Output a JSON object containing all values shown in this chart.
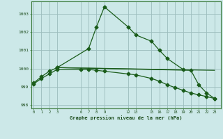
{
  "xlabel": "Graphe pression niveau de la mer (hPa)",
  "background_color": "#cce8e8",
  "grid_color": "#9bbcbc",
  "line_color": "#1a5c1a",
  "ylim": [
    997.8,
    1003.7
  ],
  "yticks": [
    998,
    999,
    1000,
    1001,
    1002,
    1003
  ],
  "xticks": [
    0,
    1,
    2,
    3,
    6,
    7,
    8,
    9,
    12,
    13,
    15,
    16,
    17,
    18,
    19,
    20,
    21,
    22,
    23
  ],
  "xlim": [
    -0.3,
    23.8
  ],
  "series1_x": [
    0,
    1,
    2,
    3,
    7,
    8,
    9,
    12,
    13,
    15,
    16,
    17,
    19
  ],
  "series1_y": [
    999.2,
    999.55,
    999.85,
    1000.05,
    1001.1,
    1002.3,
    1003.4,
    1002.3,
    1001.85,
    1001.5,
    1001.0,
    1000.55,
    999.95
  ],
  "series2_x": [
    0,
    1,
    2,
    3,
    6,
    7,
    8,
    9,
    12,
    13,
    15,
    16,
    17,
    18,
    19,
    20,
    21,
    22,
    23
  ],
  "series2_y": [
    999.15,
    999.45,
    999.7,
    999.95,
    999.95,
    999.95,
    999.9,
    999.85,
    999.7,
    999.65,
    999.45,
    999.3,
    999.1,
    998.95,
    998.8,
    998.65,
    998.55,
    998.45,
    998.35
  ],
  "series3_x": [
    3,
    20,
    21,
    22,
    23
  ],
  "series3_y": [
    1000.05,
    999.9,
    999.1,
    998.65,
    998.35
  ],
  "series4_x": [
    3,
    23
  ],
  "series4_y": [
    1000.05,
    999.9
  ],
  "marker_size": 2.5,
  "line_width": 0.9,
  "font_family": "monospace"
}
